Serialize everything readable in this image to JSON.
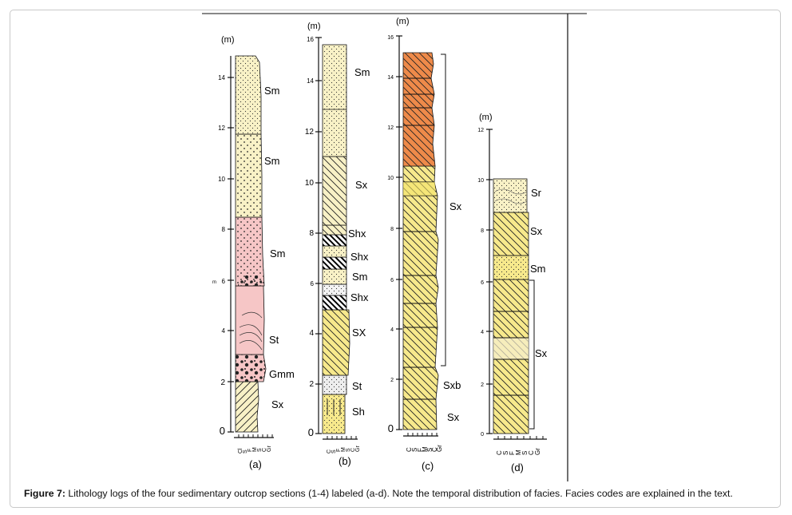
{
  "caption": {
    "label": "Figure 7:",
    "text": " Lithology logs of the four sedimentary outcrop sections (1-4) labeled (a-d). Note the temporal distribution of facies. Facies codes are explained in the text."
  },
  "columns": [
    {
      "panel": "(a)",
      "unit": "(m)",
      "ticks": [
        "0",
        "2",
        "4",
        "6",
        "8",
        "10",
        "12",
        "14"
      ],
      "extra_tick_label": "m",
      "grain_labels": [
        "Cl",
        "S",
        "F",
        "M",
        "S",
        "C",
        "Gr"
      ],
      "facies": [
        {
          "code": "Sx"
        },
        {
          "code": "Gmm"
        },
        {
          "code": "St"
        },
        {
          "code": "Sm"
        },
        {
          "code": "Sm"
        },
        {
          "code": "Sm"
        }
      ]
    },
    {
      "panel": "(b)",
      "unit": "(m)",
      "ticks": [
        "0",
        "2",
        "4",
        "6",
        "8",
        "10",
        "12",
        "14",
        "16"
      ],
      "grain_labels": [
        "C",
        "S",
        "F",
        "M",
        "S",
        "C",
        "Gr"
      ],
      "facies": [
        {
          "code": "Sh"
        },
        {
          "code": "St"
        },
        {
          "code": "SX"
        },
        {
          "code": "Shx"
        },
        {
          "code": "Sm"
        },
        {
          "code": "Shx"
        },
        {
          "code": "Shx"
        },
        {
          "code": "Sx"
        },
        {
          "code": "Sm"
        }
      ]
    },
    {
      "panel": "(c)",
      "unit": "(m)",
      "ticks": [
        "0",
        "2",
        "4",
        "6",
        "8",
        "10",
        "12",
        "14",
        "16"
      ],
      "grain_labels": [
        "C",
        "S",
        "F",
        "M",
        "S",
        "C",
        "Gr"
      ],
      "facies": [
        {
          "code": "Sx"
        },
        {
          "code": "Sxb"
        },
        {
          "code": "Sx"
        }
      ]
    },
    {
      "panel": "(d)",
      "unit": "(m)",
      "ticks": [
        "0",
        "2",
        "4",
        "6",
        "8",
        "10",
        "12"
      ],
      "grain_labels": [
        "C",
        "S",
        "F",
        "M",
        "S",
        "C",
        "Gr"
      ],
      "facies": [
        {
          "code": "Sx"
        },
        {
          "code": "Sm"
        },
        {
          "code": "Sx"
        },
        {
          "code": "Sr"
        }
      ]
    }
  ],
  "colors": {
    "pale_yellow": "#f8f1c6",
    "yellow": "#f7e98c",
    "pink": "#f6c6c6",
    "orange": "#ee8a4a",
    "line": "#111111"
  }
}
